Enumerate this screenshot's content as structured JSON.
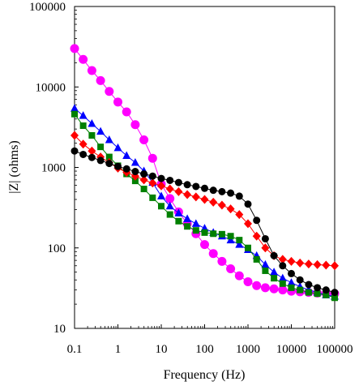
{
  "chart_data": {
    "type": "line",
    "xlabel": "Frequency (Hz)",
    "ylabel": "|Z| (ohms)",
    "x_scale": "log",
    "y_scale": "log",
    "xlim": [
      0.1,
      100000
    ],
    "ylim": [
      10,
      100000
    ],
    "x_ticks": [
      {
        "value": 0.1,
        "label": "0.1"
      },
      {
        "value": 1,
        "label": "1"
      },
      {
        "value": 10,
        "label": "10"
      },
      {
        "value": 100,
        "label": "100"
      },
      {
        "value": 1000,
        "label": "1000"
      },
      {
        "value": 10000,
        "label": "10000"
      },
      {
        "value": 100000,
        "label": "100000"
      }
    ],
    "y_ticks": [
      {
        "value": 10,
        "label": "10"
      },
      {
        "value": 100,
        "label": "100"
      },
      {
        "value": 1000,
        "label": "1000"
      },
      {
        "value": 10000,
        "label": "10000"
      },
      {
        "value": 100000,
        "label": "100000"
      }
    ],
    "grid": false,
    "legend": "none",
    "series": [
      {
        "color": "#ff00ff",
        "marker": "circle",
        "x": [
          0.1,
          0.158,
          0.251,
          0.398,
          0.631,
          1,
          1.585,
          2.512,
          3.981,
          6.31,
          10,
          15.85,
          25.12,
          39.81,
          63.1,
          100,
          158.5,
          251.2,
          398.1,
          631,
          1000,
          1585,
          2512,
          3981,
          6310,
          10000,
          15850,
          25120,
          39810,
          63100,
          100000
        ],
        "y": [
          30000,
          22000,
          16000,
          12000,
          8800,
          6500,
          4900,
          3400,
          2200,
          1300,
          620,
          410,
          280,
          200,
          150,
          110,
          85,
          68,
          55,
          45,
          38,
          34,
          32,
          31,
          30,
          29,
          28.5,
          28,
          27.5,
          27,
          27
        ]
      },
      {
        "color": "#0000ff",
        "marker": "triangle",
        "x": [
          0.1,
          0.158,
          0.251,
          0.398,
          0.631,
          1,
          1.585,
          2.512,
          3.981,
          6.31,
          10,
          15.85,
          25.12,
          39.81,
          63.1,
          100,
          158.5,
          251.2,
          398.1,
          631,
          1000,
          1585,
          2512,
          3981,
          6310,
          10000,
          15850,
          25120,
          39810,
          63100,
          100000
        ],
        "y": [
          5400,
          4400,
          3500,
          2800,
          2200,
          1750,
          1400,
          1150,
          900,
          650,
          440,
          330,
          270,
          230,
          200,
          175,
          155,
          140,
          125,
          110,
          95,
          80,
          62,
          50,
          42,
          37,
          33,
          30,
          28,
          26,
          25
        ]
      },
      {
        "color": "#008000",
        "marker": "square",
        "x": [
          0.1,
          0.158,
          0.251,
          0.398,
          0.631,
          1,
          1.585,
          2.512,
          3.981,
          6.31,
          10,
          15.85,
          25.12,
          39.81,
          63.1,
          100,
          158.5,
          251.2,
          398.1,
          631,
          1000,
          1585,
          2512,
          3981,
          6310,
          10000,
          15850,
          25120,
          39810,
          63100,
          100000
        ],
        "y": [
          4600,
          3300,
          2500,
          1800,
          1350,
          1050,
          830,
          680,
          540,
          420,
          330,
          260,
          215,
          185,
          165,
          155,
          150,
          148,
          140,
          125,
          100,
          72,
          52,
          42,
          36,
          32,
          30,
          28,
          27,
          26,
          24
        ]
      },
      {
        "color": "#ff0000",
        "marker": "diamond",
        "x": [
          0.1,
          0.158,
          0.251,
          0.398,
          0.631,
          1,
          1.585,
          2.512,
          3.981,
          6.31,
          10,
          15.85,
          25.12,
          39.81,
          63.1,
          100,
          158.5,
          251.2,
          398.1,
          631,
          1000,
          1585,
          2512,
          3981,
          6310,
          10000,
          15850,
          25120,
          39810,
          63100,
          100000
        ],
        "y": [
          2500,
          1950,
          1600,
          1350,
          1150,
          980,
          870,
          780,
          700,
          640,
          590,
          540,
          500,
          460,
          430,
          400,
          370,
          340,
          305,
          260,
          200,
          140,
          100,
          80,
          72,
          68,
          65,
          63,
          62,
          61,
          60
        ]
      },
      {
        "color": "#000000",
        "marker": "circle",
        "x": [
          0.1,
          0.158,
          0.251,
          0.398,
          0.631,
          1,
          1.585,
          2.512,
          3.981,
          6.31,
          10,
          15.85,
          25.12,
          39.81,
          63.1,
          100,
          158.5,
          251.2,
          398.1,
          631,
          1000,
          1585,
          2512,
          3981,
          6310,
          10000,
          15850,
          25120,
          39810,
          63100,
          100000
        ],
        "y": [
          1600,
          1450,
          1330,
          1220,
          1120,
          1030,
          960,
          890,
          830,
          780,
          730,
          690,
          650,
          610,
          580,
          550,
          520,
          500,
          480,
          440,
          350,
          220,
          130,
          80,
          60,
          48,
          40,
          35,
          32,
          30,
          28
        ]
      }
    ]
  }
}
